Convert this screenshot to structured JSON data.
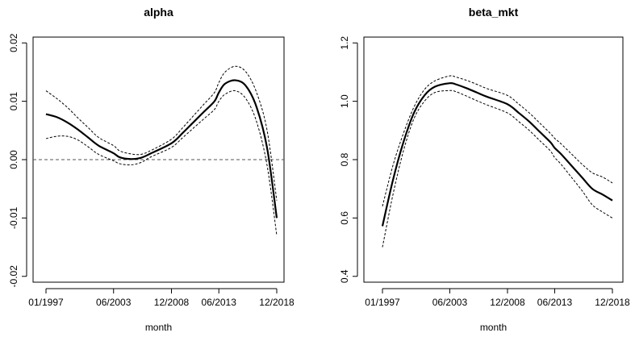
{
  "chart_data": [
    {
      "type": "line",
      "title": "alpha",
      "xlabel": "month",
      "ylabel": "",
      "x_ticks": [
        "01/1997",
        "06/2003",
        "12/2008",
        "06/2013",
        "12/2018"
      ],
      "y_ticks": [
        "-0.02",
        "-0.01",
        "0.00",
        "0.01",
        "0.02"
      ],
      "ylim": [
        -0.021,
        0.021
      ],
      "reference_line": {
        "y": 0.0,
        "style": "dashed"
      },
      "x": [
        "01/1997",
        "01/1998",
        "01/1999",
        "01/2000",
        "01/2001",
        "01/2002",
        "06/2003",
        "01/2004",
        "01/2005",
        "01/2006",
        "01/2007",
        "12/2008",
        "01/2010",
        "01/2011",
        "01/2012",
        "01/2013",
        "06/2013",
        "01/2014",
        "01/2015",
        "01/2016",
        "01/2017",
        "01/2018",
        "12/2018"
      ],
      "series": [
        {
          "role": "estimate",
          "style": "solid",
          "values": [
            0.0078,
            0.0073,
            0.0064,
            0.0052,
            0.0038,
            0.0024,
            0.0011,
            0.0004,
            0.0001,
            0.0003,
            0.0011,
            0.0028,
            0.0046,
            0.0064,
            0.0082,
            0.01,
            0.0115,
            0.013,
            0.0136,
            0.0126,
            0.009,
            0.002,
            -0.01
          ]
        },
        {
          "role": "upper",
          "style": "dashed",
          "values": [
            0.0118,
            0.0105,
            0.009,
            0.0072,
            0.0055,
            0.0038,
            0.0024,
            0.0015,
            0.001,
            0.0009,
            0.0016,
            0.0035,
            0.0055,
            0.0075,
            0.0095,
            0.0115,
            0.0132,
            0.015,
            0.016,
            0.015,
            0.0115,
            0.005,
            -0.007
          ]
        },
        {
          "role": "lower",
          "style": "dashed",
          "values": [
            0.0036,
            0.004,
            0.004,
            0.0034,
            0.0022,
            0.0009,
            -0.0002,
            -0.0007,
            -0.0009,
            -0.0005,
            0.0005,
            0.0021,
            0.0038,
            0.0054,
            0.007,
            0.0086,
            0.01,
            0.0112,
            0.0118,
            0.0104,
            0.0065,
            -0.001,
            -0.013
          ]
        }
      ]
    },
    {
      "type": "line",
      "title": "beta_mkt",
      "xlabel": "month",
      "ylabel": "",
      "x_ticks": [
        "01/1997",
        "06/2003",
        "12/2008",
        "06/2013",
        "12/2018"
      ],
      "y_ticks": [
        "0.4",
        "0.6",
        "0.8",
        "1.0",
        "1.2"
      ],
      "ylim": [
        0.38,
        1.22
      ],
      "x": [
        "01/1997",
        "01/1998",
        "01/1999",
        "01/2000",
        "01/2001",
        "01/2002",
        "06/2003",
        "01/2004",
        "01/2005",
        "01/2006",
        "01/2007",
        "12/2008",
        "01/2010",
        "01/2011",
        "01/2012",
        "01/2013",
        "06/2013",
        "01/2014",
        "01/2015",
        "01/2016",
        "01/2017",
        "01/2018",
        "12/2018"
      ],
      "series": [
        {
          "role": "estimate",
          "style": "solid",
          "values": [
            0.572,
            0.73,
            0.86,
            0.96,
            1.02,
            1.05,
            1.062,
            1.058,
            1.045,
            1.03,
            1.015,
            0.99,
            0.96,
            0.93,
            0.895,
            0.86,
            0.84,
            0.82,
            0.78,
            0.74,
            0.7,
            0.68,
            0.66
          ]
        },
        {
          "role": "upper",
          "style": "dashed",
          "values": [
            0.64,
            0.78,
            0.89,
            0.98,
            1.04,
            1.07,
            1.087,
            1.083,
            1.072,
            1.058,
            1.043,
            1.02,
            0.99,
            0.96,
            0.925,
            0.89,
            0.873,
            0.855,
            0.82,
            0.785,
            0.755,
            0.74,
            0.72
          ]
        },
        {
          "role": "lower",
          "style": "dashed",
          "values": [
            0.5,
            0.68,
            0.83,
            0.94,
            1.0,
            1.03,
            1.037,
            1.033,
            1.018,
            1.002,
            0.987,
            0.96,
            0.93,
            0.9,
            0.865,
            0.83,
            0.807,
            0.785,
            0.74,
            0.695,
            0.645,
            0.62,
            0.6
          ]
        }
      ]
    }
  ]
}
